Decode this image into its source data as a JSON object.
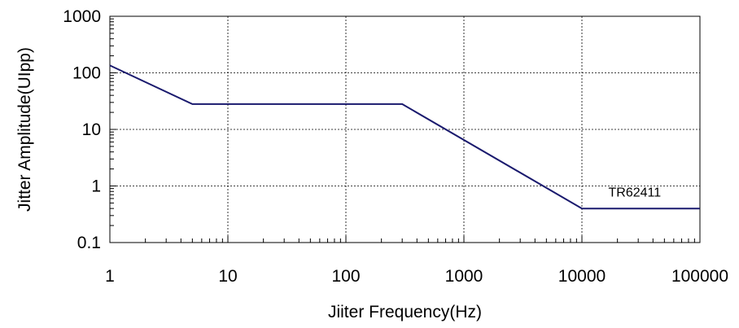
{
  "chart_data": {
    "type": "line",
    "title": "",
    "xlabel": "Jiiter Frequency(Hz)",
    "ylabel": "Jitter Amplitude(UIpp)",
    "x_scale": "log",
    "y_scale": "log",
    "xlim": [
      1,
      100000
    ],
    "ylim": [
      0.1,
      1000
    ],
    "x_ticks": [
      1,
      10,
      100,
      1000,
      10000,
      100000
    ],
    "x_tick_labels": [
      "1",
      "10",
      "100",
      "1000",
      "10000",
      "100000"
    ],
    "y_ticks": [
      0.1,
      1,
      10,
      100,
      1000
    ],
    "y_tick_labels": [
      "0.1",
      "1",
      "10",
      "100",
      "1000"
    ],
    "grid": true,
    "series": [
      {
        "x": [
          1,
          5,
          300,
          10000,
          100000
        ],
        "y": [
          135,
          28,
          28,
          0.4,
          0.4
        ],
        "color": "#1a1a6e"
      }
    ],
    "annotations": [
      {
        "text": "TR62411",
        "x": 28000,
        "y": 0.65
      }
    ]
  }
}
